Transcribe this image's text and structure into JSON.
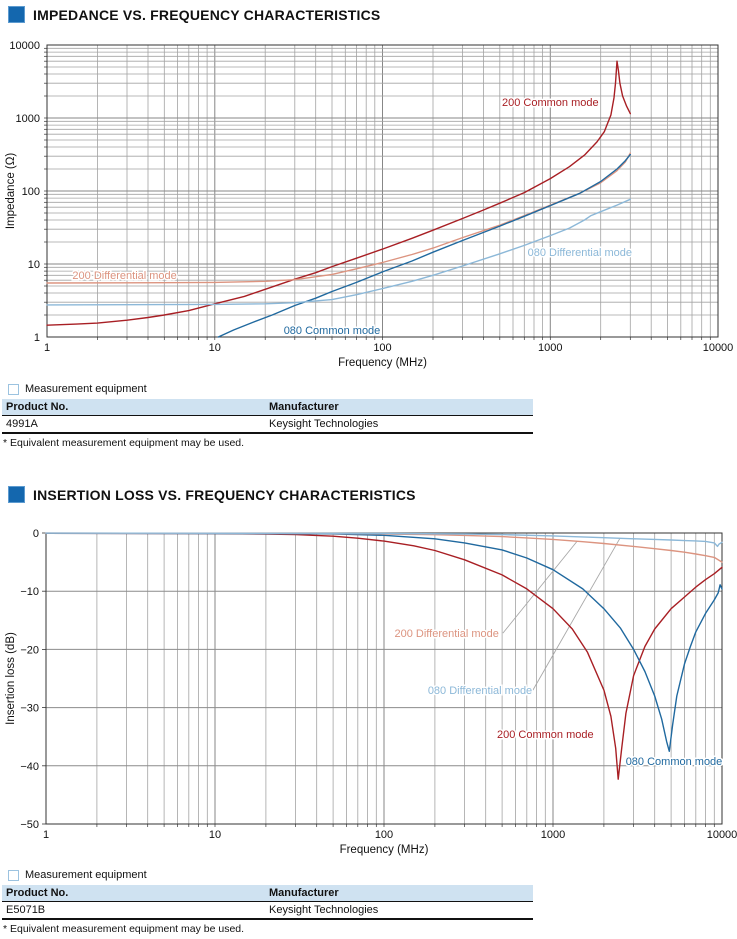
{
  "colors": {
    "accent_blue": "#1467ae",
    "table_header_bg": "#cfe2f1",
    "red": "#a81f24",
    "salmon": "#dc9480",
    "blue": "#20699f",
    "light_blue": "#8cb8d8",
    "grid_gray": "#a3a3a3"
  },
  "section1": {
    "title": "IMPEDANCE VS. FREQUENCY CHARACTERISTICS",
    "equipment_label": "Measurement equipment",
    "table": {
      "headers": [
        "Product No.",
        "Manufacturer"
      ],
      "rows": [
        [
          "4991A",
          "Keysight Technologies"
        ]
      ],
      "footnote": "* Equivalent measurement equipment may be used."
    }
  },
  "section2": {
    "title": "INSERTION LOSS VS. FREQUENCY CHARACTERISTICS",
    "equipment_label": "Measurement equipment",
    "table": {
      "headers": [
        "Product No.",
        "Manufacturer"
      ],
      "rows": [
        [
          "E5071B",
          "Keysight Technologies"
        ]
      ],
      "footnote": "* Equivalent measurement equipment may be used."
    }
  },
  "chart_data": [
    {
      "type": "line",
      "title": "Impedance vs. frequency",
      "xlabel": "Frequency (MHz)",
      "ylabel": "Impedance (Ω)",
      "xscale": "log",
      "yscale": "log",
      "xlim": [
        1,
        10000
      ],
      "ylim": [
        1,
        10000
      ],
      "xticks": [
        {
          "v": 1,
          "label": "1"
        },
        {
          "v": 10,
          "label": "10"
        },
        {
          "v": 100,
          "label": "100"
        },
        {
          "v": 1000,
          "label": "1000"
        },
        {
          "v": 10000,
          "label": "10000"
        }
      ],
      "yticks": [
        {
          "v": 1,
          "label": "1"
        },
        {
          "v": 10,
          "label": "10"
        },
        {
          "v": 100,
          "label": "100"
        },
        {
          "v": 1000,
          "label": "1000"
        },
        {
          "v": 10000,
          "label": "10000"
        }
      ],
      "grid": {
        "x": "log-minor",
        "y": "log-minor"
      },
      "legend_position": "inline-labels",
      "leaders": [],
      "series": [
        {
          "name": "200 Common mode",
          "color": "#a81f24",
          "label_pos": [
            1000,
            1650
          ],
          "points": [
            [
              1,
              1.45
            ],
            [
              1.5,
              1.5
            ],
            [
              2,
              1.55
            ],
            [
              3,
              1.7
            ],
            [
              4,
              1.85
            ],
            [
              5,
              2.0
            ],
            [
              7,
              2.3
            ],
            [
              10,
              2.85
            ],
            [
              15,
              3.6
            ],
            [
              20,
              4.5
            ],
            [
              30,
              6.2
            ],
            [
              40,
              7.6
            ],
            [
              50,
              9.2
            ],
            [
              70,
              12
            ],
            [
              100,
              16
            ],
            [
              150,
              22.5
            ],
            [
              200,
              29
            ],
            [
              300,
              42
            ],
            [
              400,
              55
            ],
            [
              500,
              68
            ],
            [
              700,
              95
            ],
            [
              1000,
              148
            ],
            [
              1300,
              215
            ],
            [
              1600,
              310
            ],
            [
              1900,
              470
            ],
            [
              2100,
              650
            ],
            [
              2300,
              1100
            ],
            [
              2400,
              1900
            ],
            [
              2450,
              3000
            ],
            [
              2500,
              6000
            ],
            [
              2550,
              4500
            ],
            [
              2600,
              3000
            ],
            [
              2700,
              2000
            ],
            [
              2850,
              1450
            ],
            [
              3000,
              1150
            ]
          ]
        },
        {
          "name": "200 Differential mode",
          "color": "#dc9480",
          "label_pos": [
            2.9,
            7.1
          ],
          "points": [
            [
              1,
              5.5
            ],
            [
              5,
              5.55
            ],
            [
              10,
              5.6
            ],
            [
              20,
              5.8
            ],
            [
              30,
              6.1
            ],
            [
              50,
              7.2
            ],
            [
              70,
              8.6
            ],
            [
              100,
              10.5
            ],
            [
              150,
              13.5
            ],
            [
              200,
              16.5
            ],
            [
              300,
              23
            ],
            [
              500,
              34
            ],
            [
              700,
              46
            ],
            [
              1000,
              64
            ],
            [
              1500,
              93
            ],
            [
              2000,
              130
            ],
            [
              2500,
              190
            ],
            [
              2800,
              250
            ],
            [
              3000,
              330
            ]
          ]
        },
        {
          "name": "080 Common mode",
          "color": "#20699f",
          "label_pos": [
            50,
            1.25
          ],
          "points": [
            [
              10.5,
              1.0
            ],
            [
              13,
              1.25
            ],
            [
              17,
              1.6
            ],
            [
              22,
              2.0
            ],
            [
              30,
              2.7
            ],
            [
              40,
              3.4
            ],
            [
              50,
              4.2
            ],
            [
              70,
              5.6
            ],
            [
              100,
              7.8
            ],
            [
              150,
              11
            ],
            [
              200,
              14.5
            ],
            [
              300,
              21
            ],
            [
              500,
              33
            ],
            [
              700,
              45
            ],
            [
              1000,
              63
            ],
            [
              1500,
              93
            ],
            [
              2000,
              135
            ],
            [
              2500,
              200
            ],
            [
              2800,
              260
            ],
            [
              3000,
              315
            ]
          ]
        },
        {
          "name": "080 Differential mode",
          "color": "#8cb8d8",
          "label_pos": [
            1500,
            14.5
          ],
          "points": [
            [
              1,
              2.75
            ],
            [
              5,
              2.78
            ],
            [
              10,
              2.8
            ],
            [
              20,
              2.85
            ],
            [
              30,
              2.95
            ],
            [
              50,
              3.25
            ],
            [
              70,
              3.8
            ],
            [
              100,
              4.6
            ],
            [
              150,
              5.8
            ],
            [
              200,
              7.0
            ],
            [
              300,
              9.4
            ],
            [
              500,
              13.8
            ],
            [
              700,
              18
            ],
            [
              1000,
              24.5
            ],
            [
              1300,
              31
            ],
            [
              1600,
              40
            ],
            [
              1750,
              46
            ],
            [
              2000,
              52
            ],
            [
              2500,
              64
            ],
            [
              3000,
              77
            ]
          ]
        }
      ]
    },
    {
      "type": "line",
      "title": "Insertion loss vs. frequency",
      "xlabel": "Frequency (MHz)",
      "ylabel": "Insertion loss (dB)",
      "xscale": "log",
      "yscale": "linear",
      "xlim": [
        1,
        10000
      ],
      "ylim": [
        -50,
        0
      ],
      "xticks": [
        {
          "v": 1,
          "label": "1"
        },
        {
          "v": 10,
          "label": "10"
        },
        {
          "v": 100,
          "label": "100"
        },
        {
          "v": 1000,
          "label": "1000"
        },
        {
          "v": 10000,
          "label": "10000"
        }
      ],
      "yticks": [
        {
          "v": 0,
          "label": "0"
        },
        {
          "v": -10,
          "label": "−10"
        },
        {
          "v": -20,
          "label": "−20"
        },
        {
          "v": -30,
          "label": "−30"
        },
        {
          "v": -40,
          "label": "−40"
        },
        {
          "v": -50,
          "label": "−50"
        }
      ],
      "grid": {
        "x": "log-minor",
        "y": "major"
      },
      "legend_position": "inline-labels",
      "leaders": [
        {
          "from": [
            505,
            -17.2
          ],
          "to": [
            1390,
            -1.4
          ]
        },
        {
          "from": [
            760,
            -27.0
          ],
          "to": [
            2490,
            -0.9
          ]
        }
      ],
      "series": [
        {
          "name": "200 Common mode",
          "color": "#a81f24",
          "label_pos": [
            900,
            -34.5
          ],
          "points": [
            [
              1,
              -0.05
            ],
            [
              10,
              -0.1
            ],
            [
              20,
              -0.18
            ],
            [
              30,
              -0.28
            ],
            [
              50,
              -0.55
            ],
            [
              70,
              -0.9
            ],
            [
              100,
              -1.4
            ],
            [
              150,
              -2.2
            ],
            [
              200,
              -3.0
            ],
            [
              300,
              -4.6
            ],
            [
              500,
              -7.2
            ],
            [
              700,
              -9.6
            ],
            [
              1000,
              -13
            ],
            [
              1300,
              -16.5
            ],
            [
              1600,
              -20.5
            ],
            [
              2000,
              -27
            ],
            [
              2200,
              -31.5
            ],
            [
              2350,
              -37
            ],
            [
              2430,
              -42.3
            ],
            [
              2550,
              -37
            ],
            [
              2700,
              -31
            ],
            [
              3000,
              -24.5
            ],
            [
              3500,
              -19.5
            ],
            [
              4000,
              -16.5
            ],
            [
              5000,
              -13
            ],
            [
              6000,
              -11
            ],
            [
              7000,
              -9.3
            ],
            [
              8000,
              -8
            ],
            [
              9000,
              -7
            ],
            [
              10000,
              -5.9
            ]
          ]
        },
        {
          "name": "080 Common mode",
          "color": "#20699f",
          "label_pos": [
            5200,
            -39.2
          ],
          "points": [
            [
              1,
              -0.05
            ],
            [
              50,
              -0.15
            ],
            [
              100,
              -0.4
            ],
            [
              200,
              -1.0
            ],
            [
              300,
              -1.7
            ],
            [
              500,
              -2.9
            ],
            [
              700,
              -4.3
            ],
            [
              1000,
              -6.3
            ],
            [
              1500,
              -9.6
            ],
            [
              2000,
              -13
            ],
            [
              2500,
              -16.3
            ],
            [
              3000,
              -20
            ],
            [
              3500,
              -23.8
            ],
            [
              4000,
              -28
            ],
            [
              4400,
              -32
            ],
            [
              4700,
              -35.8
            ],
            [
              4880,
              -37.5
            ],
            [
              5100,
              -33
            ],
            [
              5400,
              -28
            ],
            [
              6000,
              -22.5
            ],
            [
              6500,
              -19.5
            ],
            [
              7000,
              -17
            ],
            [
              8000,
              -13.8
            ],
            [
              9000,
              -11.5
            ],
            [
              9500,
              -10.3
            ],
            [
              9750,
              -8.9
            ],
            [
              10000,
              -9.6
            ]
          ]
        },
        {
          "name": "200 Differential mode",
          "color": "#dc9480",
          "label_pos": [
            235,
            -17.2
          ],
          "points": [
            [
              1,
              -0.02
            ],
            [
              50,
              -0.1
            ],
            [
              100,
              -0.18
            ],
            [
              200,
              -0.3
            ],
            [
              300,
              -0.42
            ],
            [
              500,
              -0.62
            ],
            [
              700,
              -0.85
            ],
            [
              1000,
              -1.1
            ],
            [
              1500,
              -1.5
            ],
            [
              2000,
              -1.8
            ],
            [
              3000,
              -2.3
            ],
            [
              4000,
              -2.7
            ],
            [
              5000,
              -3.0
            ],
            [
              6000,
              -3.3
            ],
            [
              7000,
              -3.6
            ],
            [
              8000,
              -3.9
            ],
            [
              9000,
              -4.2
            ],
            [
              10000,
              -5.0
            ]
          ]
        },
        {
          "name": "080 Differential mode",
          "color": "#8cb8d8",
          "label_pos": [
            370,
            -27.0
          ],
          "points": [
            [
              1,
              -0.02
            ],
            [
              100,
              -0.08
            ],
            [
              300,
              -0.18
            ],
            [
              500,
              -0.28
            ],
            [
              1000,
              -0.5
            ],
            [
              2000,
              -0.8
            ],
            [
              3000,
              -1.0
            ],
            [
              4000,
              -1.1
            ],
            [
              5000,
              -1.2
            ],
            [
              6000,
              -1.3
            ],
            [
              7000,
              -1.35
            ],
            [
              8000,
              -1.45
            ],
            [
              9000,
              -1.7
            ],
            [
              9400,
              -2.3
            ],
            [
              9600,
              -1.9
            ],
            [
              10000,
              -1.6
            ]
          ]
        }
      ]
    }
  ]
}
